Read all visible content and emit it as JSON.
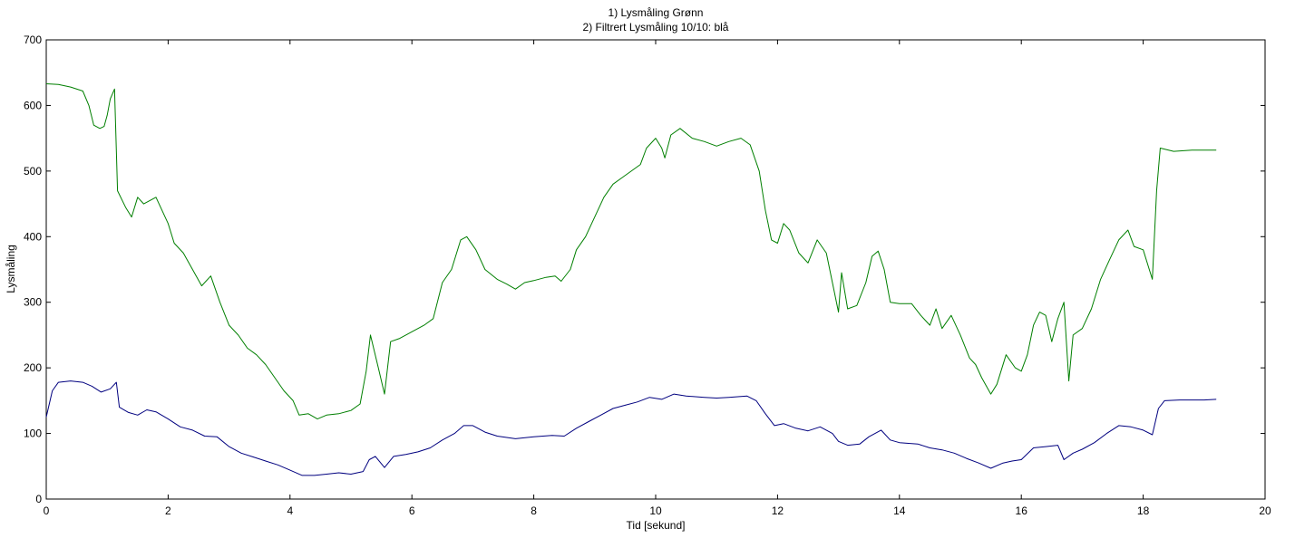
{
  "chart_data": {
    "type": "line",
    "title_lines": [
      "1) Lysmåling Grønn",
      "2) Filtrert Lysmåling 10/10: blå"
    ],
    "xlabel": "Tid [sekund]",
    "ylabel": "Lysmåling",
    "xlim": [
      0,
      20
    ],
    "ylim": [
      0,
      700
    ],
    "x_ticks": [
      0,
      2,
      4,
      6,
      8,
      10,
      12,
      14,
      16,
      18,
      20
    ],
    "y_ticks": [
      0,
      100,
      200,
      300,
      400,
      500,
      600,
      700
    ],
    "grid": false,
    "series": [
      {
        "color": "#007f00",
        "points": [
          [
            0.0,
            633
          ],
          [
            0.2,
            632
          ],
          [
            0.4,
            628
          ],
          [
            0.6,
            622
          ],
          [
            0.7,
            600
          ],
          [
            0.78,
            570
          ],
          [
            0.88,
            565
          ],
          [
            0.95,
            568
          ],
          [
            1.0,
            585
          ],
          [
            1.05,
            610
          ],
          [
            1.12,
            625
          ],
          [
            1.17,
            470
          ],
          [
            1.3,
            445
          ],
          [
            1.4,
            430
          ],
          [
            1.5,
            460
          ],
          [
            1.6,
            450
          ],
          [
            1.8,
            460
          ],
          [
            1.9,
            440
          ],
          [
            2.0,
            420
          ],
          [
            2.1,
            390
          ],
          [
            2.25,
            375
          ],
          [
            2.4,
            350
          ],
          [
            2.55,
            325
          ],
          [
            2.7,
            340
          ],
          [
            2.85,
            300
          ],
          [
            3.0,
            265
          ],
          [
            3.15,
            250
          ],
          [
            3.3,
            230
          ],
          [
            3.45,
            220
          ],
          [
            3.6,
            205
          ],
          [
            3.75,
            185
          ],
          [
            3.9,
            165
          ],
          [
            4.05,
            150
          ],
          [
            4.15,
            128
          ],
          [
            4.3,
            130
          ],
          [
            4.45,
            122
          ],
          [
            4.6,
            128
          ],
          [
            4.8,
            130
          ],
          [
            5.0,
            135
          ],
          [
            5.15,
            145
          ],
          [
            5.25,
            195
          ],
          [
            5.32,
            250
          ],
          [
            5.45,
            200
          ],
          [
            5.55,
            160
          ],
          [
            5.65,
            240
          ],
          [
            5.8,
            245
          ],
          [
            6.0,
            255
          ],
          [
            6.2,
            265
          ],
          [
            6.35,
            275
          ],
          [
            6.5,
            330
          ],
          [
            6.65,
            350
          ],
          [
            6.8,
            395
          ],
          [
            6.9,
            400
          ],
          [
            7.05,
            380
          ],
          [
            7.2,
            350
          ],
          [
            7.4,
            335
          ],
          [
            7.55,
            328
          ],
          [
            7.7,
            320
          ],
          [
            7.85,
            330
          ],
          [
            8.0,
            333
          ],
          [
            8.2,
            338
          ],
          [
            8.35,
            340
          ],
          [
            8.45,
            332
          ],
          [
            8.6,
            350
          ],
          [
            8.7,
            380
          ],
          [
            8.85,
            400
          ],
          [
            9.0,
            430
          ],
          [
            9.15,
            460
          ],
          [
            9.3,
            480
          ],
          [
            9.45,
            490
          ],
          [
            9.6,
            500
          ],
          [
            9.75,
            510
          ],
          [
            9.85,
            535
          ],
          [
            10.0,
            550
          ],
          [
            10.1,
            535
          ],
          [
            10.15,
            520
          ],
          [
            10.25,
            555
          ],
          [
            10.4,
            565
          ],
          [
            10.6,
            550
          ],
          [
            10.8,
            545
          ],
          [
            11.0,
            538
          ],
          [
            11.2,
            545
          ],
          [
            11.4,
            550
          ],
          [
            11.55,
            540
          ],
          [
            11.7,
            500
          ],
          [
            11.8,
            440
          ],
          [
            11.9,
            395
          ],
          [
            12.0,
            390
          ],
          [
            12.1,
            420
          ],
          [
            12.2,
            410
          ],
          [
            12.35,
            375
          ],
          [
            12.5,
            360
          ],
          [
            12.65,
            395
          ],
          [
            12.8,
            375
          ],
          [
            12.9,
            330
          ],
          [
            13.0,
            285
          ],
          [
            13.05,
            345
          ],
          [
            13.15,
            290
          ],
          [
            13.3,
            295
          ],
          [
            13.45,
            330
          ],
          [
            13.55,
            370
          ],
          [
            13.65,
            378
          ],
          [
            13.75,
            350
          ],
          [
            13.85,
            300
          ],
          [
            14.0,
            298
          ],
          [
            14.2,
            298
          ],
          [
            14.35,
            280
          ],
          [
            14.5,
            265
          ],
          [
            14.6,
            290
          ],
          [
            14.7,
            260
          ],
          [
            14.85,
            280
          ],
          [
            15.0,
            250
          ],
          [
            15.15,
            215
          ],
          [
            15.25,
            205
          ],
          [
            15.35,
            185
          ],
          [
            15.5,
            160
          ],
          [
            15.6,
            175
          ],
          [
            15.75,
            220
          ],
          [
            15.9,
            200
          ],
          [
            16.0,
            195
          ],
          [
            16.1,
            220
          ],
          [
            16.2,
            265
          ],
          [
            16.3,
            285
          ],
          [
            16.4,
            280
          ],
          [
            16.5,
            240
          ],
          [
            16.6,
            275
          ],
          [
            16.7,
            300
          ],
          [
            16.78,
            180
          ],
          [
            16.85,
            250
          ],
          [
            17.0,
            260
          ],
          [
            17.15,
            290
          ],
          [
            17.3,
            335
          ],
          [
            17.45,
            365
          ],
          [
            17.6,
            395
          ],
          [
            17.75,
            410
          ],
          [
            17.85,
            385
          ],
          [
            18.0,
            380
          ],
          [
            18.1,
            350
          ],
          [
            18.15,
            335
          ],
          [
            18.22,
            470
          ],
          [
            18.28,
            535
          ],
          [
            18.5,
            530
          ],
          [
            18.8,
            532
          ],
          [
            19.0,
            532
          ],
          [
            19.2,
            532
          ]
        ]
      },
      {
        "color": "#00007f",
        "points": [
          [
            0.0,
            125
          ],
          [
            0.1,
            165
          ],
          [
            0.2,
            178
          ],
          [
            0.4,
            180
          ],
          [
            0.6,
            178
          ],
          [
            0.75,
            172
          ],
          [
            0.9,
            163
          ],
          [
            1.05,
            168
          ],
          [
            1.15,
            178
          ],
          [
            1.2,
            140
          ],
          [
            1.35,
            132
          ],
          [
            1.5,
            128
          ],
          [
            1.65,
            136
          ],
          [
            1.8,
            133
          ],
          [
            2.0,
            122
          ],
          [
            2.2,
            110
          ],
          [
            2.4,
            105
          ],
          [
            2.6,
            96
          ],
          [
            2.8,
            95
          ],
          [
            3.0,
            80
          ],
          [
            3.2,
            70
          ],
          [
            3.4,
            64
          ],
          [
            3.6,
            58
          ],
          [
            3.8,
            52
          ],
          [
            4.0,
            44
          ],
          [
            4.2,
            36
          ],
          [
            4.4,
            36
          ],
          [
            4.6,
            38
          ],
          [
            4.8,
            40
          ],
          [
            5.0,
            38
          ],
          [
            5.2,
            42
          ],
          [
            5.3,
            60
          ],
          [
            5.4,
            65
          ],
          [
            5.55,
            48
          ],
          [
            5.7,
            65
          ],
          [
            5.9,
            68
          ],
          [
            6.1,
            72
          ],
          [
            6.3,
            78
          ],
          [
            6.5,
            90
          ],
          [
            6.7,
            100
          ],
          [
            6.85,
            112
          ],
          [
            7.0,
            112
          ],
          [
            7.2,
            102
          ],
          [
            7.4,
            96
          ],
          [
            7.7,
            92
          ],
          [
            8.0,
            95
          ],
          [
            8.3,
            97
          ],
          [
            8.5,
            96
          ],
          [
            8.7,
            108
          ],
          [
            8.9,
            118
          ],
          [
            9.1,
            128
          ],
          [
            9.3,
            138
          ],
          [
            9.5,
            143
          ],
          [
            9.7,
            148
          ],
          [
            9.9,
            155
          ],
          [
            10.1,
            152
          ],
          [
            10.3,
            160
          ],
          [
            10.5,
            157
          ],
          [
            10.8,
            155
          ],
          [
            11.0,
            154
          ],
          [
            11.2,
            155
          ],
          [
            11.5,
            157
          ],
          [
            11.65,
            150
          ],
          [
            11.8,
            130
          ],
          [
            11.95,
            112
          ],
          [
            12.1,
            115
          ],
          [
            12.3,
            108
          ],
          [
            12.5,
            104
          ],
          [
            12.7,
            110
          ],
          [
            12.9,
            100
          ],
          [
            13.0,
            88
          ],
          [
            13.15,
            82
          ],
          [
            13.35,
            84
          ],
          [
            13.5,
            95
          ],
          [
            13.7,
            105
          ],
          [
            13.85,
            90
          ],
          [
            14.0,
            86
          ],
          [
            14.3,
            84
          ],
          [
            14.5,
            78
          ],
          [
            14.7,
            75
          ],
          [
            14.9,
            70
          ],
          [
            15.1,
            62
          ],
          [
            15.3,
            55
          ],
          [
            15.5,
            47
          ],
          [
            15.7,
            55
          ],
          [
            15.85,
            58
          ],
          [
            16.0,
            60
          ],
          [
            16.2,
            78
          ],
          [
            16.4,
            80
          ],
          [
            16.6,
            82
          ],
          [
            16.7,
            60
          ],
          [
            16.85,
            70
          ],
          [
            17.0,
            76
          ],
          [
            17.2,
            86
          ],
          [
            17.4,
            100
          ],
          [
            17.6,
            112
          ],
          [
            17.8,
            110
          ],
          [
            18.0,
            105
          ],
          [
            18.15,
            98
          ],
          [
            18.25,
            138
          ],
          [
            18.35,
            150
          ],
          [
            18.6,
            151
          ],
          [
            19.0,
            151
          ],
          [
            19.2,
            152
          ]
        ]
      }
    ]
  }
}
